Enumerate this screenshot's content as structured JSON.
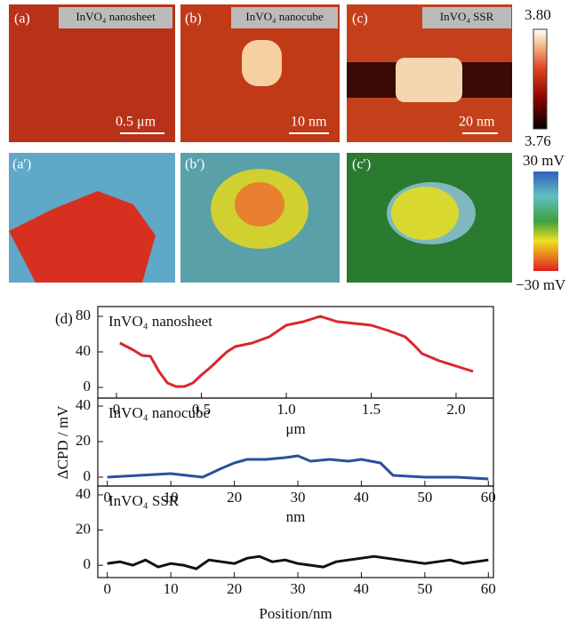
{
  "panels": {
    "a": "(a)",
    "a_title": "InVO₄ nanosheet",
    "a_scale": "0.5 μm",
    "b": "(b)",
    "b_title": "InVO₄ nanocube",
    "b_scale": "10 nm",
    "c": "(c)",
    "c_title": "InVO₄ SSR",
    "c_scale": "20 nm",
    "a2": "(a′)",
    "b2": "(b′)",
    "c2": "(c′)",
    "bar1_max": "3.80",
    "bar1_min": "3.76",
    "bar2_max": "30 mV",
    "bar2_min": "−30 mV"
  },
  "label": "(d)",
  "ylabel": "ΔCPD / mV",
  "chart_data": [
    {
      "type": "line",
      "title": "InVO₄ nanosheet",
      "xlabel": "μm",
      "xlim": [
        -0.11,
        2.22
      ],
      "xticks": [
        0,
        0.5,
        {
          "value": 1,
          "label": "1.0"
        },
        1.5,
        {
          "value": 2,
          "label": "2.0"
        }
      ],
      "ylim": [
        -12,
        91
      ],
      "yticks": [
        0,
        40,
        80
      ],
      "series": [
        {
          "color": "#d8282e",
          "x": [
            0.02,
            0.1,
            0.15,
            0.2,
            0.25,
            0.3,
            0.35,
            0.4,
            0.45,
            0.5,
            0.55,
            0.6,
            0.65,
            0.7,
            0.8,
            0.9,
            1.0,
            1.1,
            1.2,
            1.3,
            1.4,
            1.5,
            1.6,
            1.7,
            1.75,
            1.8,
            1.9,
            2.0,
            2.1
          ],
          "values": [
            50,
            42,
            36,
            35,
            18,
            5,
            1,
            1,
            5,
            14,
            22,
            31,
            40,
            46,
            50,
            57,
            70,
            74,
            80,
            74,
            72,
            70,
            64,
            57,
            48,
            38,
            30,
            24,
            18
          ]
        }
      ]
    },
    {
      "type": "line",
      "title": "InVO₄ nanocube",
      "xlabel": "nm",
      "xlim": [
        -1.5,
        60.8
      ],
      "xticks": [
        0,
        10,
        20,
        30,
        40,
        50,
        60
      ],
      "ylim": [
        -5,
        44.5
      ],
      "yticks": [
        0,
        20,
        40
      ],
      "series": [
        {
          "color": "#2d4fa0",
          "x": [
            0,
            5,
            10,
            15,
            18,
            20,
            22,
            25,
            28,
            30,
            32,
            35,
            38,
            40,
            43,
            45,
            50,
            55,
            60
          ],
          "values": [
            0,
            1,
            2,
            0,
            5,
            8,
            10,
            10,
            11,
            12,
            9,
            10,
            9,
            10,
            8,
            1,
            0,
            0,
            -1
          ]
        }
      ]
    },
    {
      "type": "line",
      "title": "InVO₄ SSR",
      "xlabel": "Position/nm",
      "xlim": [
        -1.5,
        60.8
      ],
      "xticks": [
        0,
        10,
        20,
        30,
        40,
        50,
        60
      ],
      "ylim": [
        -7,
        45
      ],
      "yticks": [
        0,
        20,
        40
      ],
      "series": [
        {
          "color": "#111111",
          "x": [
            0,
            2,
            4,
            6,
            8,
            10,
            12,
            14,
            16,
            18,
            20,
            22,
            24,
            26,
            28,
            30,
            32,
            34,
            36,
            38,
            40,
            42,
            44,
            46,
            48,
            50,
            52,
            54,
            56,
            58,
            60
          ],
          "values": [
            1,
            2,
            0,
            3,
            -1,
            1,
            0,
            -2,
            3,
            2,
            1,
            4,
            5,
            2,
            3,
            1,
            0,
            -1,
            2,
            3,
            4,
            5,
            4,
            3,
            2,
            1,
            2,
            3,
            1,
            2,
            3
          ]
        }
      ]
    }
  ]
}
